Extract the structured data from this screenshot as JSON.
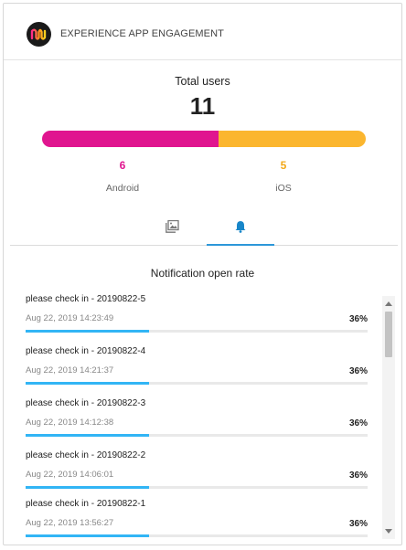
{
  "header": {
    "title": "EXPERIENCE APP ENGAGEMENT",
    "logo_icon": "brand-logo-icon"
  },
  "summary": {
    "total_label": "Total users",
    "total_value": "11",
    "android": {
      "count": "6",
      "label": "Android",
      "color": "#e0158f"
    },
    "ios": {
      "count": "5",
      "label": "iOS",
      "color": "#fbb62f"
    },
    "android_share": 0.545
  },
  "tabs": [
    {
      "icon": "gallery-icon",
      "active": false
    },
    {
      "icon": "bell-icon",
      "active": true
    }
  ],
  "notifications": {
    "title": "Notification open rate",
    "accent": "#32b5f5",
    "items": [
      {
        "title": "please check in - 20190822-5",
        "time": "Aug 22, 2019 14:23:49",
        "rate": "36%",
        "value": 0.36
      },
      {
        "title": "please check in - 20190822-4",
        "time": "Aug 22, 2019 14:21:37",
        "rate": "36%",
        "value": 0.36
      },
      {
        "title": "please check in - 20190822-3",
        "time": "Aug 22, 2019 14:12:38",
        "rate": "36%",
        "value": 0.36
      },
      {
        "title": "please check in - 20190822-2",
        "time": "Aug 22, 2019 14:06:01",
        "rate": "36%",
        "value": 0.36
      },
      {
        "title": "please check in - 20190822-1",
        "time": "Aug 22, 2019 13:56:27",
        "rate": "36%",
        "value": 0.36
      }
    ]
  }
}
